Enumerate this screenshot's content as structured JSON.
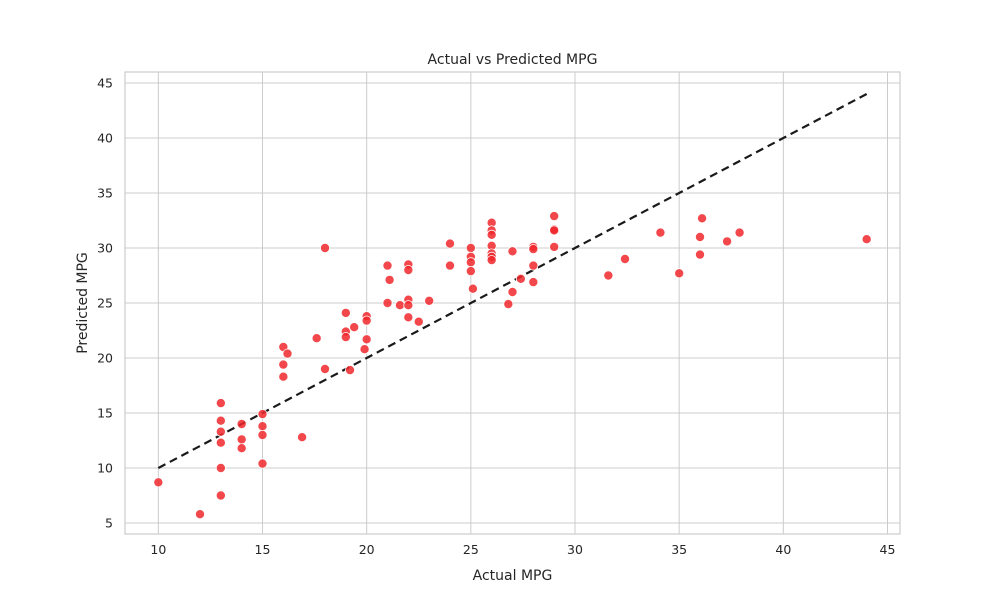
{
  "chart_data": {
    "type": "scatter",
    "title": "Actual vs Predicted MPG",
    "xlabel": "Actual MPG",
    "ylabel": "Predicted MPG",
    "xlim": [
      8.4,
      45.6
    ],
    "ylim": [
      4.0,
      46.0
    ],
    "xticks": [
      10,
      15,
      20,
      25,
      30,
      35,
      40,
      45
    ],
    "yticks": [
      5,
      10,
      15,
      20,
      25,
      30,
      35,
      40,
      45
    ],
    "grid": true,
    "point_color": "#f0282d",
    "line_color": "#1a1a1a",
    "reference_line": {
      "style": "dashed",
      "points": [
        [
          10,
          10
        ],
        [
          44,
          44
        ]
      ]
    },
    "points": [
      {
        "x": 10,
        "y": 8.7
      },
      {
        "x": 12,
        "y": 5.8
      },
      {
        "x": 13,
        "y": 15.9
      },
      {
        "x": 13,
        "y": 14.3
      },
      {
        "x": 13,
        "y": 13.3
      },
      {
        "x": 13,
        "y": 12.3
      },
      {
        "x": 13,
        "y": 10.0
      },
      {
        "x": 13,
        "y": 7.5
      },
      {
        "x": 14,
        "y": 14.0
      },
      {
        "x": 14,
        "y": 12.6
      },
      {
        "x": 14,
        "y": 11.8
      },
      {
        "x": 15,
        "y": 14.9
      },
      {
        "x": 15,
        "y": 13.8
      },
      {
        "x": 15,
        "y": 13.0
      },
      {
        "x": 15,
        "y": 10.4
      },
      {
        "x": 16,
        "y": 21.0
      },
      {
        "x": 16,
        "y": 19.4
      },
      {
        "x": 16,
        "y": 18.3
      },
      {
        "x": 16.2,
        "y": 20.4
      },
      {
        "x": 16.9,
        "y": 12.8
      },
      {
        "x": 17.6,
        "y": 21.8
      },
      {
        "x": 18,
        "y": 30.0
      },
      {
        "x": 18,
        "y": 19.0
      },
      {
        "x": 19,
        "y": 24.1
      },
      {
        "x": 19,
        "y": 22.4
      },
      {
        "x": 19,
        "y": 21.9
      },
      {
        "x": 19.2,
        "y": 18.9
      },
      {
        "x": 19.4,
        "y": 22.8
      },
      {
        "x": 20,
        "y": 23.8
      },
      {
        "x": 20,
        "y": 23.4
      },
      {
        "x": 20,
        "y": 21.7
      },
      {
        "x": 19.9,
        "y": 20.8
      },
      {
        "x": 21,
        "y": 28.4
      },
      {
        "x": 21.1,
        "y": 27.1
      },
      {
        "x": 21,
        "y": 25.0
      },
      {
        "x": 21.6,
        "y": 24.8
      },
      {
        "x": 22,
        "y": 28.5
      },
      {
        "x": 22,
        "y": 28.0
      },
      {
        "x": 22,
        "y": 25.3
      },
      {
        "x": 22,
        "y": 24.8
      },
      {
        "x": 22,
        "y": 23.7
      },
      {
        "x": 22.5,
        "y": 23.3
      },
      {
        "x": 23,
        "y": 25.2
      },
      {
        "x": 24,
        "y": 30.4
      },
      {
        "x": 24,
        "y": 28.4
      },
      {
        "x": 25,
        "y": 30.0
      },
      {
        "x": 25,
        "y": 29.2
      },
      {
        "x": 25,
        "y": 28.7
      },
      {
        "x": 25,
        "y": 27.9
      },
      {
        "x": 25.1,
        "y": 26.3
      },
      {
        "x": 26,
        "y": 32.3
      },
      {
        "x": 26,
        "y": 31.6
      },
      {
        "x": 26,
        "y": 31.2
      },
      {
        "x": 26,
        "y": 30.2
      },
      {
        "x": 26,
        "y": 29.5
      },
      {
        "x": 26,
        "y": 29.2
      },
      {
        "x": 26,
        "y": 28.9
      },
      {
        "x": 26.8,
        "y": 24.9
      },
      {
        "x": 27,
        "y": 29.7
      },
      {
        "x": 27,
        "y": 26.0
      },
      {
        "x": 27.4,
        "y": 27.2
      },
      {
        "x": 28,
        "y": 30.1
      },
      {
        "x": 28,
        "y": 29.9
      },
      {
        "x": 28,
        "y": 28.4
      },
      {
        "x": 28,
        "y": 26.9
      },
      {
        "x": 29,
        "y": 32.9
      },
      {
        "x": 29,
        "y": 31.7
      },
      {
        "x": 29,
        "y": 31.6
      },
      {
        "x": 29,
        "y": 30.1
      },
      {
        "x": 31.6,
        "y": 27.5
      },
      {
        "x": 32.4,
        "y": 29.0
      },
      {
        "x": 34.1,
        "y": 31.4
      },
      {
        "x": 35,
        "y": 27.7
      },
      {
        "x": 36,
        "y": 31.0
      },
      {
        "x": 36,
        "y": 29.4
      },
      {
        "x": 36.1,
        "y": 32.7
      },
      {
        "x": 37.3,
        "y": 30.6
      },
      {
        "x": 37.9,
        "y": 31.4
      },
      {
        "x": 44,
        "y": 30.8
      }
    ]
  }
}
